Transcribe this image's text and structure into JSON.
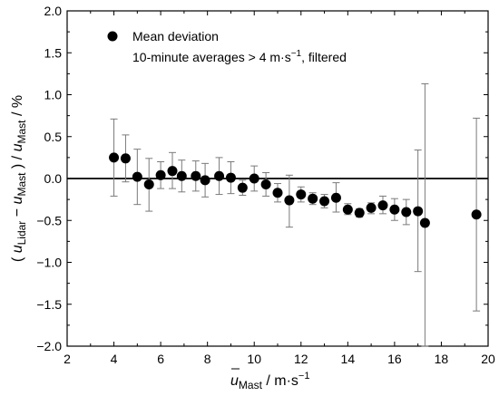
{
  "chart_data": {
    "type": "scatter",
    "x_label": {
      "overbar": "u",
      "sub": "Mast",
      "rest": " / m·s",
      "sup": "−1"
    },
    "y_label": {
      "open": "( ",
      "u1": "u",
      "sub1": "Lidar",
      "minus": " − ",
      "u2": "u",
      "sub2": "Mast",
      "mid": " ) / ",
      "u3": "u",
      "sub3": "Mast",
      "unit": " / %"
    },
    "xlim": [
      2,
      20
    ],
    "ylim": [
      -2.0,
      2.0
    ],
    "x_ticks": [
      2,
      4,
      6,
      8,
      10,
      12,
      14,
      16,
      18,
      20
    ],
    "y_ticks": [
      "-2.0",
      "-1.5",
      "-1.0",
      "-0.5",
      "0.0",
      "0.5",
      "1.0",
      "1.5",
      "2.0"
    ],
    "reference_line_y": 0,
    "legend": {
      "marker_label": "Mean deviation",
      "note_prefix": "10-minute averages > 4 m·s",
      "note_sup": "−1",
      "note_suffix": ", filtered"
    },
    "series": [
      {
        "name": "Mean deviation",
        "points": [
          {
            "x": 4.0,
            "y": 0.25,
            "lo": -0.21,
            "hi": 0.71
          },
          {
            "x": 4.5,
            "y": 0.24,
            "lo": -0.04,
            "hi": 0.52
          },
          {
            "x": 5.0,
            "y": 0.02,
            "lo": -0.31,
            "hi": 0.35
          },
          {
            "x": 5.5,
            "y": -0.07,
            "lo": -0.39,
            "hi": 0.24
          },
          {
            "x": 6.0,
            "y": 0.04,
            "lo": -0.12,
            "hi": 0.2
          },
          {
            "x": 6.5,
            "y": 0.09,
            "lo": -0.12,
            "hi": 0.31
          },
          {
            "x": 6.9,
            "y": 0.03,
            "lo": -0.16,
            "hi": 0.22
          },
          {
            "x": 7.5,
            "y": 0.03,
            "lo": -0.15,
            "hi": 0.21
          },
          {
            "x": 7.9,
            "y": -0.02,
            "lo": -0.22,
            "hi": 0.18
          },
          {
            "x": 8.5,
            "y": 0.03,
            "lo": -0.19,
            "hi": 0.25
          },
          {
            "x": 9.0,
            "y": 0.01,
            "lo": -0.18,
            "hi": 0.2
          },
          {
            "x": 9.5,
            "y": -0.11,
            "lo": -0.2,
            "hi": -0.02
          },
          {
            "x": 10.0,
            "y": 0.0,
            "lo": -0.15,
            "hi": 0.15
          },
          {
            "x": 10.5,
            "y": -0.07,
            "lo": -0.21,
            "hi": 0.07
          },
          {
            "x": 11.0,
            "y": -0.17,
            "lo": -0.28,
            "hi": -0.06
          },
          {
            "x": 11.5,
            "y": -0.26,
            "lo": -0.58,
            "hi": 0.04
          },
          {
            "x": 12.0,
            "y": -0.19,
            "lo": -0.28,
            "hi": -0.1
          },
          {
            "x": 12.5,
            "y": -0.24,
            "lo": -0.31,
            "hi": -0.17
          },
          {
            "x": 13.0,
            "y": -0.27,
            "lo": -0.35,
            "hi": -0.19
          },
          {
            "x": 13.5,
            "y": -0.23,
            "lo": -0.4,
            "hi": -0.05
          },
          {
            "x": 14.0,
            "y": -0.37,
            "lo": -0.43,
            "hi": -0.3
          },
          {
            "x": 14.5,
            "y": -0.41,
            "lo": -0.46,
            "hi": -0.36
          },
          {
            "x": 15.0,
            "y": -0.35,
            "lo": -0.42,
            "hi": -0.29
          },
          {
            "x": 15.5,
            "y": -0.32,
            "lo": -0.42,
            "hi": -0.21
          },
          {
            "x": 16.0,
            "y": -0.37,
            "lo": -0.5,
            "hi": -0.24
          },
          {
            "x": 16.5,
            "y": -0.4,
            "lo": -0.55,
            "hi": -0.25
          },
          {
            "x": 17.0,
            "y": -0.39,
            "lo": -1.11,
            "hi": 0.34
          },
          {
            "x": 17.3,
            "y": -0.53,
            "lo": -2.0,
            "hi": 1.13
          },
          {
            "x": 19.5,
            "y": -0.43,
            "lo": -1.58,
            "hi": 0.72
          }
        ]
      }
    ]
  }
}
